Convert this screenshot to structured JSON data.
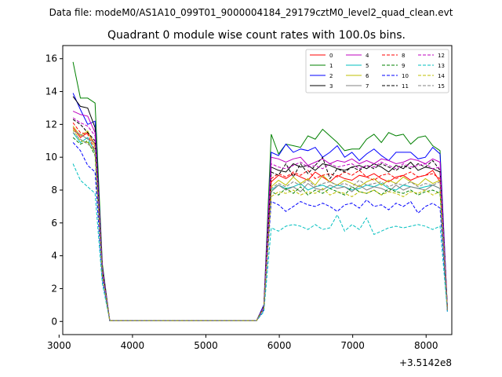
{
  "chart_data": {
    "type": "line",
    "suptitle": "Data file: modeM0/AS1A10_099T01_9000004184_29179cztM0_level2_quad_clean.evt",
    "title": "Quadrant 0 module wise count rates with 100.0s bins.",
    "xlabel": "",
    "ylabel": "",
    "x_offset_label": "+3.5142e8",
    "xlim": [
      3050,
      8350
    ],
    "ylim": [
      -0.8,
      16.8
    ],
    "xticks": [
      3000,
      4000,
      5000,
      6000,
      7000,
      8000
    ],
    "xtick_labels": [
      "3000",
      "4000",
      "5000",
      "6000",
      "7000",
      "8000"
    ],
    "yticks": [
      0,
      2,
      4,
      6,
      8,
      10,
      12,
      14,
      16
    ],
    "ytick_labels": [
      "0",
      "2",
      "4",
      "6",
      "8",
      "10",
      "12",
      "14",
      "16"
    ],
    "legend_location": "upper-right",
    "x": [
      3190,
      3290,
      3390,
      3490,
      3590,
      3690,
      5690,
      5790,
      5890,
      5990,
      6090,
      6190,
      6290,
      6390,
      6490,
      6590,
      6690,
      6790,
      6890,
      6990,
      7090,
      7190,
      7290,
      7390,
      7490,
      7590,
      7690,
      7790,
      7890,
      7990,
      8090,
      8190,
      8290
    ],
    "series": [
      {
        "name": "0",
        "color": "#ff0000",
        "dash": "solid",
        "values": [
          11.8,
          11.2,
          11.5,
          10.8,
          3.0,
          0.05,
          0.05,
          0.8,
          8.5,
          8.9,
          8.7,
          9.0,
          8.8,
          8.6,
          9.1,
          8.8,
          8.5,
          8.9,
          8.7,
          8.6,
          8.9,
          8.8,
          9.0,
          8.7,
          8.5,
          8.8,
          8.9,
          8.6,
          8.8,
          8.9,
          9.2,
          8.5,
          0.7
        ]
      },
      {
        "name": "1",
        "color": "#008000",
        "dash": "solid",
        "values": [
          15.8,
          13.6,
          13.6,
          13.3,
          3.5,
          0.05,
          0.05,
          1.0,
          11.4,
          10.2,
          10.8,
          10.7,
          10.6,
          11.3,
          11.1,
          11.7,
          11.3,
          10.9,
          10.4,
          10.5,
          10.5,
          11.1,
          11.4,
          10.9,
          11.5,
          11.3,
          11.4,
          10.8,
          11.2,
          11.3,
          10.7,
          10.4,
          0.8
        ]
      },
      {
        "name": "2",
        "color": "#0000ff",
        "dash": "solid",
        "values": [
          13.9,
          12.9,
          12.0,
          12.2,
          3.3,
          0.05,
          0.05,
          1.0,
          10.3,
          10.1,
          10.8,
          10.3,
          10.5,
          10.4,
          10.6,
          10.0,
          10.3,
          10.7,
          10.0,
          10.3,
          9.8,
          10.2,
          10.5,
          10.1,
          9.8,
          10.3,
          10.3,
          10.3,
          9.9,
          10.0,
          10.6,
          10.2,
          0.8
        ]
      },
      {
        "name": "3",
        "color": "#000000",
        "dash": "solid",
        "values": [
          13.7,
          13.1,
          13.0,
          11.8,
          3.2,
          0.05,
          0.05,
          0.9,
          9.4,
          9.2,
          9.1,
          9.6,
          9.4,
          9.5,
          9.2,
          9.6,
          9.5,
          9.3,
          9.2,
          9.4,
          9.5,
          9.3,
          9.6,
          9.4,
          9.1,
          9.5,
          9.3,
          9.7,
          9.2,
          9.4,
          9.3,
          9.1,
          0.8
        ]
      },
      {
        "name": "4",
        "color": "#bf00bf",
        "dash": "solid",
        "values": [
          12.8,
          12.6,
          12.5,
          11.5,
          3.2,
          0.05,
          0.05,
          0.9,
          10.0,
          9.9,
          9.7,
          9.9,
          10.0,
          9.5,
          9.7,
          9.9,
          9.6,
          9.8,
          9.7,
          9.9,
          9.6,
          9.8,
          9.6,
          9.9,
          9.8,
          9.6,
          9.7,
          9.9,
          9.8,
          9.6,
          9.9,
          9.7,
          0.8
        ]
      },
      {
        "name": "5",
        "color": "#00bfbf",
        "dash": "solid",
        "values": [
          11.5,
          10.9,
          11.2,
          10.3,
          2.9,
          0.05,
          0.05,
          0.8,
          8.0,
          8.3,
          8.1,
          8.2,
          8.4,
          8.0,
          8.2,
          8.3,
          8.1,
          8.3,
          8.2,
          8.0,
          8.1,
          8.3,
          8.2,
          8.4,
          8.1,
          8.0,
          8.3,
          8.2,
          8.1,
          8.2,
          8.3,
          8.1,
          0.7
        ]
      },
      {
        "name": "6",
        "color": "#bfbf00",
        "dash": "solid",
        "values": [
          11.9,
          11.3,
          11.6,
          10.6,
          3.0,
          0.05,
          0.05,
          0.9,
          8.2,
          8.6,
          8.3,
          8.8,
          8.4,
          8.7,
          8.3,
          8.9,
          8.5,
          8.3,
          8.6,
          8.4,
          8.2,
          8.5,
          8.7,
          8.3,
          8.6,
          8.4,
          8.8,
          8.5,
          8.3,
          8.7,
          8.4,
          8.6,
          0.7
        ]
      },
      {
        "name": "7",
        "color": "#808080",
        "dash": "solid",
        "values": [
          11.6,
          11.4,
          11.1,
          10.9,
          2.9,
          0.05,
          0.05,
          0.8,
          7.9,
          8.3,
          8.0,
          8.2,
          7.9,
          8.4,
          8.1,
          8.0,
          8.3,
          8.1,
          8.2,
          7.9,
          8.3,
          8.0,
          8.2,
          8.1,
          7.9,
          8.3,
          8.0,
          8.2,
          8.1,
          8.0,
          8.3,
          8.1,
          0.7
        ]
      },
      {
        "name": "8",
        "color": "#ff0000",
        "dash": "dashed",
        "values": [
          12.1,
          11.5,
          11.4,
          10.4,
          3.0,
          0.05,
          0.05,
          0.8,
          8.7,
          9.0,
          8.8,
          9.1,
          8.9,
          9.2,
          8.7,
          8.9,
          9.0,
          8.8,
          9.1,
          8.9,
          9.2,
          8.8,
          8.6,
          8.9,
          9.0,
          8.7,
          8.9,
          9.1,
          8.8,
          8.9,
          9.0,
          8.7,
          0.7
        ]
      },
      {
        "name": "9",
        "color": "#008000",
        "dash": "dashed",
        "values": [
          11.2,
          10.8,
          11.0,
          10.1,
          2.8,
          0.05,
          0.05,
          0.8,
          7.9,
          7.7,
          8.1,
          7.8,
          8.2,
          7.7,
          8.0,
          7.8,
          8.1,
          7.9,
          7.7,
          8.2,
          7.9,
          7.8,
          8.0,
          7.7,
          8.1,
          7.9,
          7.8,
          8.0,
          7.7,
          7.9,
          8.0,
          7.8,
          0.7
        ]
      },
      {
        "name": "10",
        "color": "#0000ff",
        "dash": "dashed",
        "values": [
          10.9,
          10.4,
          9.5,
          9.1,
          2.6,
          0.05,
          0.05,
          0.7,
          7.3,
          7.1,
          6.7,
          7.0,
          7.3,
          7.1,
          7.0,
          7.2,
          7.0,
          6.7,
          7.1,
          7.2,
          6.9,
          7.4,
          7.0,
          7.1,
          6.8,
          7.2,
          7.0,
          7.3,
          6.6,
          7.0,
          7.2,
          6.9,
          0.6
        ]
      },
      {
        "name": "11",
        "color": "#000000",
        "dash": "dashed",
        "values": [
          12.3,
          12.0,
          11.5,
          11.0,
          3.1,
          0.05,
          0.05,
          0.9,
          9.1,
          8.9,
          9.6,
          8.8,
          9.6,
          9.0,
          9.5,
          10.0,
          8.7,
          9.3,
          9.1,
          9.4,
          9.2,
          9.5,
          9.3,
          9.6,
          9.4,
          9.2,
          9.5,
          9.3,
          9.6,
          9.4,
          9.8,
          9.2,
          0.8
        ]
      },
      {
        "name": "12",
        "color": "#bf00bf",
        "dash": "dashed",
        "values": [
          12.4,
          12.1,
          11.9,
          11.3,
          3.2,
          0.05,
          0.05,
          0.9,
          9.6,
          9.4,
          9.3,
          9.5,
          9.7,
          9.4,
          9.5,
          9.3,
          9.6,
          9.4,
          9.5,
          9.6,
          9.3,
          9.5,
          9.4,
          9.7,
          9.5,
          9.3,
          9.6,
          9.4,
          9.5,
          9.6,
          9.3,
          9.4,
          0.8
        ]
      },
      {
        "name": "13",
        "color": "#00bfbf",
        "dash": "dashed",
        "values": [
          9.6,
          8.6,
          8.2,
          7.8,
          2.3,
          0.05,
          0.05,
          0.6,
          5.7,
          5.5,
          5.8,
          5.9,
          5.8,
          5.6,
          5.9,
          5.6,
          5.7,
          6.5,
          5.5,
          5.9,
          5.6,
          6.3,
          5.3,
          5.5,
          5.7,
          5.8,
          5.7,
          5.8,
          5.9,
          5.8,
          5.6,
          5.8,
          0.6
        ]
      },
      {
        "name": "14",
        "color": "#bfbf00",
        "dash": "dashed",
        "values": [
          11.7,
          11.0,
          10.9,
          10.3,
          2.8,
          0.05,
          0.05,
          0.8,
          7.6,
          7.9,
          7.8,
          8.0,
          7.7,
          7.9,
          7.8,
          8.1,
          7.7,
          7.9,
          7.8,
          7.6,
          7.9,
          7.8,
          8.0,
          7.7,
          7.9,
          7.8,
          7.6,
          7.9,
          7.8,
          8.0,
          7.7,
          7.9,
          0.7
        ]
      },
      {
        "name": "15",
        "color": "#808080",
        "dash": "dashed",
        "values": [
          11.5,
          11.1,
          10.8,
          10.5,
          2.9,
          0.05,
          0.05,
          0.8,
          8.1,
          8.4,
          8.2,
          8.5,
          8.3,
          8.6,
          8.2,
          8.4,
          8.5,
          8.3,
          8.4,
          8.2,
          8.6,
          8.3,
          8.4,
          8.5,
          8.2,
          8.4,
          8.3,
          8.5,
          8.2,
          8.4,
          8.3,
          8.5,
          0.7
        ]
      }
    ]
  }
}
